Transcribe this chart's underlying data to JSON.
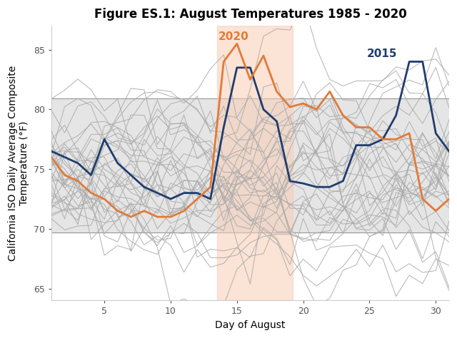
{
  "title": "Figure ES.1: August Temperatures 1985 - 2020",
  "xlabel": "Day of August",
  "ylabel": "California ISO Daily Average Composite\nTemperature (°F)",
  "ylim": [
    64,
    87
  ],
  "xlim": [
    1,
    31
  ],
  "yticks": [
    65,
    70,
    75,
    80,
    85
  ],
  "xticks": [
    5,
    10,
    15,
    20,
    25,
    30
  ],
  "band_ymin": 69.7,
  "band_ymax": 80.9,
  "highlight_xmin": 13.5,
  "highlight_xmax": 19.2,
  "highlight_color": "#f8cdb4",
  "highlight_alpha": 0.55,
  "band_color": "#e5e5e5",
  "band_line_color": "#999999",
  "gray_line_color": "#aaaaaa",
  "year2020_color": "#e07b39",
  "year2015_color": "#1f3d6e",
  "background_color": "#ffffff",
  "year2020": [
    76.0,
    74.5,
    74.0,
    73.0,
    72.5,
    71.5,
    71.0,
    71.5,
    71.0,
    71.0,
    71.5,
    72.5,
    73.5,
    84.0,
    85.5,
    82.5,
    84.5,
    81.5,
    80.2,
    80.5,
    80.0,
    81.5,
    79.5,
    78.5,
    78.5,
    77.5,
    77.5,
    78.0,
    72.5,
    71.5,
    72.5
  ],
  "year2015": [
    76.5,
    76.0,
    75.5,
    74.5,
    77.5,
    75.5,
    74.5,
    73.5,
    73.0,
    72.5,
    73.0,
    73.0,
    72.5,
    78.5,
    83.5,
    83.5,
    80.0,
    79.0,
    74.0,
    73.8,
    73.5,
    73.5,
    74.0,
    77.0,
    77.0,
    77.5,
    79.5,
    84.0,
    84.0,
    78.0,
    76.5
  ],
  "label2020_day": 13.6,
  "label2020_temp": 85.8,
  "label2015_day": 24.8,
  "label2015_temp": 84.4,
  "title_fontsize": 12,
  "axis_label_fontsize": 10,
  "tick_fontsize": 9,
  "annotation_fontsize": 11
}
